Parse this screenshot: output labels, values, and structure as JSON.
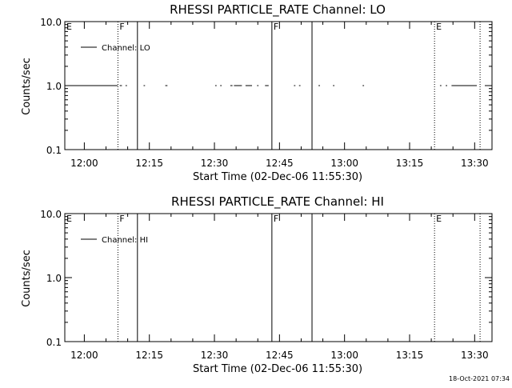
{
  "figure": {
    "timestamp": "18-Oct-2021 07:34"
  },
  "chart_data": [
    {
      "type": "line",
      "title": "RHESSI PARTICLE_RATE Channel: LO",
      "xlabel": "Start Time (02-Dec-06 11:55:30)",
      "ylabel": "Counts/sec",
      "y_scale": "log",
      "ylim": [
        0.1,
        10.0
      ],
      "y_ticks": [
        "0.1",
        "1.0",
        "10.0"
      ],
      "xlim": [
        "11:55:30",
        "13:34:00"
      ],
      "x_ticks": [
        "12:00",
        "12:15",
        "12:30",
        "12:45",
        "13:00",
        "13:15",
        "13:30"
      ],
      "grid": false,
      "legend": {
        "position": "top-left",
        "entries": [
          "Channel: LO"
        ]
      },
      "series": [
        {
          "name": "Channel: LO",
          "color": "#000000",
          "segments": [
            {
              "start": "11:55:30",
              "end": "12:07:40",
              "value": 1.0
            },
            {
              "start": "12:08:10",
              "end": "12:08:40",
              "value": 1.0
            },
            {
              "start": "12:09:30",
              "end": "12:09:50",
              "value": 1.0
            },
            {
              "start": "12:13:40",
              "end": "12:14:00",
              "value": 1.0
            },
            {
              "start": "12:18:40",
              "end": "12:19:10",
              "value": 1.0
            },
            {
              "start": "12:30:10",
              "end": "12:30:30",
              "value": 1.0
            },
            {
              "start": "12:31:20",
              "end": "12:31:40",
              "value": 1.0
            },
            {
              "start": "12:33:40",
              "end": "12:34:10",
              "value": 1.0
            },
            {
              "start": "12:34:30",
              "end": "12:36:20",
              "value": 1.0
            },
            {
              "start": "12:37:10",
              "end": "12:38:40",
              "value": 1.0
            },
            {
              "start": "12:39:50",
              "end": "12:40:10",
              "value": 1.0
            },
            {
              "start": "12:41:40",
              "end": "12:42:30",
              "value": 1.0
            },
            {
              "start": "12:48:20",
              "end": "12:48:40",
              "value": 1.0
            },
            {
              "start": "12:49:30",
              "end": "12:49:50",
              "value": 1.0
            },
            {
              "start": "12:54:00",
              "end": "12:54:20",
              "value": 1.0
            },
            {
              "start": "12:57:20",
              "end": "12:57:40",
              "value": 1.0
            },
            {
              "start": "13:04:10",
              "end": "13:04:30",
              "value": 1.0
            },
            {
              "start": "13:22:00",
              "end": "13:22:20",
              "value": 1.0
            },
            {
              "start": "13:23:20",
              "end": "13:23:40",
              "value": 1.0
            },
            {
              "start": "13:24:40",
              "end": "13:30:30",
              "value": 1.0
            }
          ]
        }
      ],
      "annotations": [
        {
          "time": "11:55:30",
          "label": "E",
          "line": "none"
        },
        {
          "time": "12:07:45",
          "label": "F",
          "line": "dotted"
        },
        {
          "time": "12:12:15",
          "label": "",
          "line": "solid"
        },
        {
          "time": "12:43:15",
          "label": "F",
          "line": "solid"
        },
        {
          "time": "12:52:30",
          "label": "",
          "line": "solid"
        },
        {
          "time": "13:20:45",
          "label": "E",
          "line": "dotted"
        },
        {
          "time": "13:31:15",
          "label": "",
          "line": "dotted"
        }
      ]
    },
    {
      "type": "line",
      "title": "RHESSI PARTICLE_RATE Channel: HI",
      "xlabel": "Start Time (02-Dec-06 11:55:30)",
      "ylabel": "Counts/sec",
      "y_scale": "log",
      "ylim": [
        0.1,
        10.0
      ],
      "y_ticks": [
        "0.1",
        "1.0",
        "10.0"
      ],
      "xlim": [
        "11:55:30",
        "13:34:00"
      ],
      "x_ticks": [
        "12:00",
        "12:15",
        "12:30",
        "12:45",
        "13:00",
        "13:15",
        "13:30"
      ],
      "grid": false,
      "legend": {
        "position": "top-left",
        "entries": [
          "Channel: HI"
        ]
      },
      "series": [
        {
          "name": "Channel: HI",
          "color": "#000000",
          "segments": []
        }
      ],
      "annotations": [
        {
          "time": "11:55:30",
          "label": "E",
          "line": "none"
        },
        {
          "time": "12:07:45",
          "label": "F",
          "line": "dotted"
        },
        {
          "time": "12:12:15",
          "label": "",
          "line": "solid"
        },
        {
          "time": "12:43:15",
          "label": "F",
          "line": "solid"
        },
        {
          "time": "12:52:30",
          "label": "",
          "line": "solid"
        },
        {
          "time": "13:20:45",
          "label": "E",
          "line": "dotted"
        },
        {
          "time": "13:31:15",
          "label": "",
          "line": "dotted"
        }
      ]
    }
  ]
}
